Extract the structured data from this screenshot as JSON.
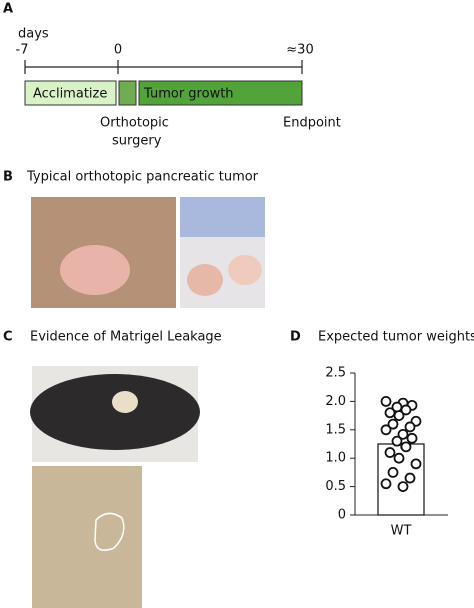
{
  "panel_a": {
    "label": "A",
    "axis_label": "days",
    "ticks": [
      "-7",
      "0",
      "≈30"
    ],
    "phases": [
      "Acclimatize",
      "Tumor growth"
    ],
    "events": [
      [
        "Orthotopic",
        "surgery"
      ],
      [
        "Endpoint"
      ]
    ]
  },
  "panel_b": {
    "label": "B",
    "title": "Typical orthotopic pancreatic tumor"
  },
  "panel_c": {
    "label": "C",
    "title": "Evidence of Matrigel Leakage"
  },
  "chart_data": {
    "type": "bar_scatter",
    "panel_label": "D",
    "title": "Expected tumor weights",
    "categories": [
      "WT"
    ],
    "values": [
      1.25
    ],
    "errors": [
      0.08
    ],
    "color": "#ffffff",
    "points": [
      2.0,
      1.97,
      1.93,
      1.9,
      1.85,
      1.8,
      1.75,
      1.65,
      1.6,
      1.55,
      1.5,
      1.42,
      1.35,
      1.3,
      1.2,
      1.1,
      1.0,
      0.9,
      0.75,
      0.65,
      0.55,
      0.5
    ],
    "ylim": [
      0,
      2.5
    ],
    "yticks": [
      0,
      0.5,
      {
        "value": 1,
        "label": "1.0"
      },
      1.5,
      {
        "value": 2,
        "label": "2.0"
      },
      2.5
    ]
  }
}
